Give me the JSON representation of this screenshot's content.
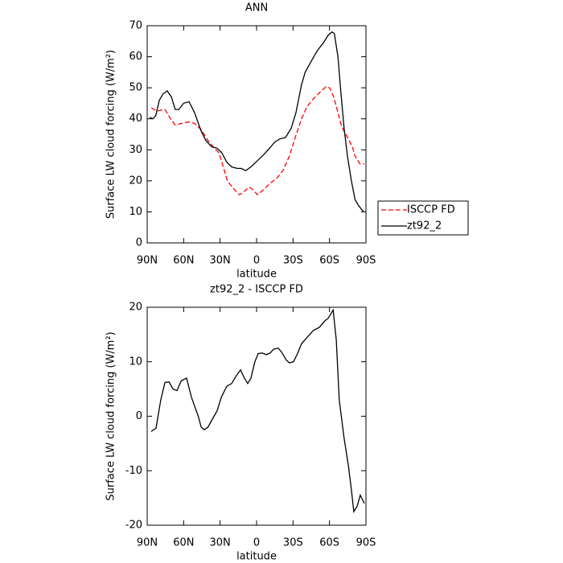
{
  "chart_data": [
    {
      "type": "line",
      "title": "ANN",
      "xlabel": "latitude",
      "ylabel": "Surface LW cloud forcing (W/m²)",
      "xlim": [
        90,
        -90
      ],
      "xticks": [
        {
          "value": 90,
          "label": "90N"
        },
        {
          "value": 60,
          "label": "60N"
        },
        {
          "value": 30,
          "label": "30N"
        },
        0,
        {
          "value": -30,
          "label": "30S"
        },
        {
          "value": -60,
          "label": "60S"
        },
        {
          "value": -90,
          "label": "90S"
        }
      ],
      "ylim": [
        0,
        70
      ],
      "yticks": [
        0,
        10,
        20,
        30,
        40,
        50,
        60,
        70
      ],
      "legend": "outside-right",
      "series": [
        {
          "name": "ISCCP FD",
          "color": "#ff0000",
          "dash": true,
          "x": [
            86.7,
            82,
            75.4,
            70.8,
            67,
            62,
            55.6,
            51,
            45.6,
            40,
            35.7,
            31,
            27,
            24,
            19,
            14,
            10.6,
            6,
            2.6,
            -0.7,
            -5.3,
            -10.6,
            -17,
            -22,
            -27,
            -31.8,
            -37,
            -41.6,
            -47,
            -52,
            -57,
            -60,
            -63.5,
            -67,
            -70,
            -74.8,
            -78.8,
            -81,
            -85,
            -88.7
          ],
          "values": [
            43.5,
            42.5,
            43,
            40,
            38,
            38.5,
            39,
            38.5,
            36.5,
            33,
            31,
            29,
            24,
            20,
            17.5,
            15.5,
            16.5,
            18,
            17,
            15.5,
            17,
            19,
            21,
            23.5,
            28,
            34,
            40,
            44,
            46.5,
            48.5,
            50.3,
            50,
            47,
            42,
            37.5,
            34,
            31,
            28,
            25.5,
            25.5
          ]
        },
        {
          "name": "zt92_2",
          "color": "#000000",
          "dash": false,
          "x": [
            88,
            85.4,
            83,
            80,
            77,
            73.5,
            70,
            67,
            64,
            60,
            55.6,
            51,
            45.6,
            41.7,
            37,
            32.4,
            28.5,
            24.5,
            20.5,
            16,
            12.6,
            9,
            4.6,
            -0.7,
            -6,
            -10.6,
            -15,
            -19,
            -23.8,
            -28.5,
            -32.4,
            -37,
            -40,
            -45.6,
            -50,
            -55,
            -59,
            -62,
            -64,
            -67,
            -69.5,
            -72,
            -74.8,
            -78,
            -81,
            -84,
            -88
          ],
          "values": [
            40.5,
            40,
            41,
            46,
            48,
            49,
            47,
            43,
            43,
            45,
            45.5,
            42,
            36,
            33,
            31,
            30.5,
            29,
            26,
            24.5,
            24,
            24,
            23.3,
            24.5,
            26.5,
            28.5,
            30.5,
            32.5,
            33.5,
            34,
            37,
            42,
            51,
            55,
            59,
            62,
            64.5,
            67,
            68,
            67.5,
            60,
            48,
            37,
            28,
            20,
            14,
            12,
            10
          ]
        }
      ]
    },
    {
      "type": "line",
      "title": "zt92_2 - ISCCP FD",
      "xlabel": "latitude",
      "ylabel": "Surface LW cloud forcing (W/m²)",
      "xlim": [
        90,
        -90
      ],
      "xticks": [
        {
          "value": 90,
          "label": "90N"
        },
        {
          "value": 60,
          "label": "60N"
        },
        {
          "value": 30,
          "label": "30N"
        },
        0,
        {
          "value": -30,
          "label": "30S"
        },
        {
          "value": -60,
          "label": "60S"
        },
        {
          "value": -90,
          "label": "90S"
        }
      ],
      "ylim": [
        -20,
        20
      ],
      "yticks": [
        -20,
        -10,
        0,
        10,
        20
      ],
      "series": [
        {
          "color": "#000000",
          "dash": false,
          "x": [
            86.7,
            82.7,
            78.8,
            75.4,
            72,
            68.8,
            65.5,
            62,
            57.6,
            53.6,
            48,
            45.6,
            43,
            40,
            35,
            32.4,
            29,
            24.5,
            20.5,
            16.5,
            13.2,
            10,
            7.3,
            4.6,
            1.4,
            -1.3,
            -4.6,
            -8,
            -11.2,
            -14,
            -17.8,
            -20.5,
            -24.5,
            -27,
            -30.4,
            -33.7,
            -37,
            -41.7,
            -47,
            -51.6,
            -56.2,
            -59,
            -63,
            -65.6,
            -68,
            -72,
            -75.5,
            -78,
            -80,
            -82.7,
            -85.4,
            -88.7
          ],
          "values": [
            -2.8,
            -2.2,
            3,
            6.2,
            6.3,
            5,
            4.7,
            6.5,
            7,
            3.5,
            0,
            -2,
            -2.5,
            -2,
            0,
            1,
            3.5,
            5.5,
            6,
            7.5,
            8.5,
            7,
            6,
            7,
            10,
            11.5,
            11.6,
            11.3,
            11.6,
            12.3,
            12.5,
            11.8,
            10.3,
            9.8,
            10,
            11.5,
            13.3,
            14.5,
            15.8,
            16.3,
            17.5,
            18,
            19.5,
            14,
            3,
            -4,
            -9,
            -13.5,
            -17.5,
            -16.5,
            -14.5,
            -16
          ]
        }
      ]
    }
  ]
}
